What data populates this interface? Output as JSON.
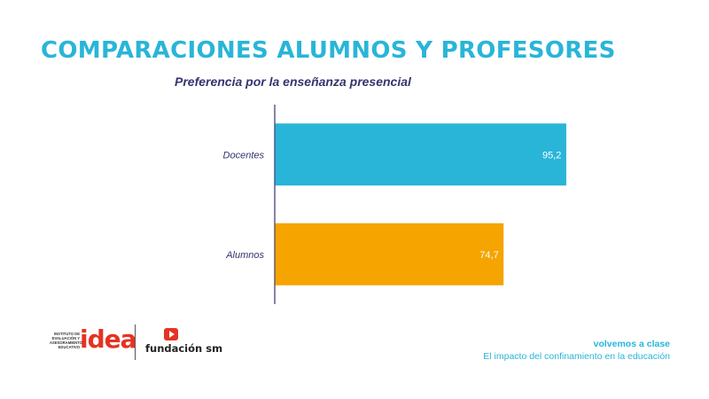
{
  "header": {
    "title": "COMPARACIONES ALUMNOS Y PROFESORES",
    "subtitle": "Preferencia por la enseñanza presencial"
  },
  "chart_data": {
    "type": "bar",
    "orientation": "horizontal",
    "categories": [
      "Docentes",
      "Alumnos"
    ],
    "values": [
      95.2,
      74.7
    ],
    "data_labels": [
      "95,2",
      "74,7"
    ],
    "bar_colors": [
      "#29b5d8",
      "#f5a400"
    ],
    "xlim": [
      0,
      100
    ],
    "grid": false,
    "title": "",
    "xlabel": "",
    "ylabel": ""
  },
  "logos": {
    "idea_small_text": "INSTITUTO DE EVALUACIÓN Y ASESORAMIENTO EDUCATIVO",
    "idea_word": "idea",
    "sm_text": "fundación sm"
  },
  "footer": {
    "line1": "volvemos a clase",
    "line2": "El impacto del confinamiento en la educación"
  },
  "colors": {
    "title": "#29b5d8",
    "subtitle": "#34356f",
    "axis": "#34356f",
    "brand_red": "#e53323"
  }
}
